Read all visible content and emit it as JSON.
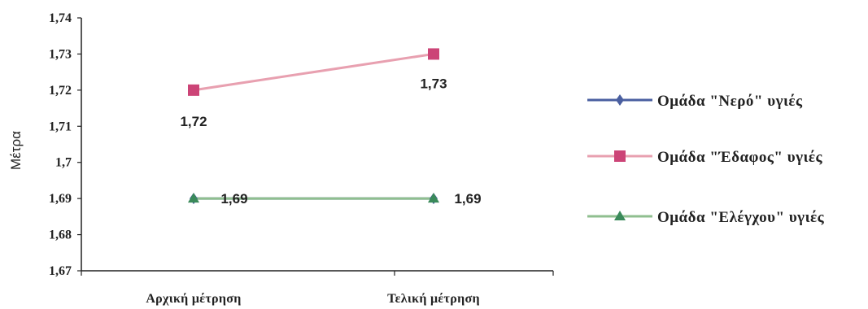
{
  "chart_data": {
    "type": "line",
    "ylabel": "Μέτρα",
    "xlabel": "",
    "categories": [
      "Αρχική μέτρηση",
      "Τελική μέτρηση"
    ],
    "ylim": [
      1.67,
      1.74
    ],
    "yticks": [
      "1,67",
      "1,68",
      "1,69",
      "1,7",
      "1,71",
      "1,72",
      "1,73",
      "1,74"
    ],
    "grid": false,
    "legend_position": "right",
    "series": [
      {
        "name": "Ομάδα \"Νερό\" υγιές",
        "values": [
          1.69,
          1.69
        ],
        "labels": [],
        "color": "#4a5fa0",
        "marker": "diamond"
      },
      {
        "name": "Ομάδα \"Έδαφος\" υγιές",
        "values": [
          1.72,
          1.73
        ],
        "labels": [
          "1,72",
          "1,73"
        ],
        "color": "#e8a0b0",
        "marker_color": "#cc4477",
        "marker": "square"
      },
      {
        "name": "Ομάδα \"Ελέγχου\" υγιές",
        "values": [
          1.69,
          1.69
        ],
        "labels": [
          "1,69",
          "1,69"
        ],
        "color": "#8fbf8f",
        "marker_color": "#3a8a5a",
        "marker": "triangle"
      }
    ]
  }
}
